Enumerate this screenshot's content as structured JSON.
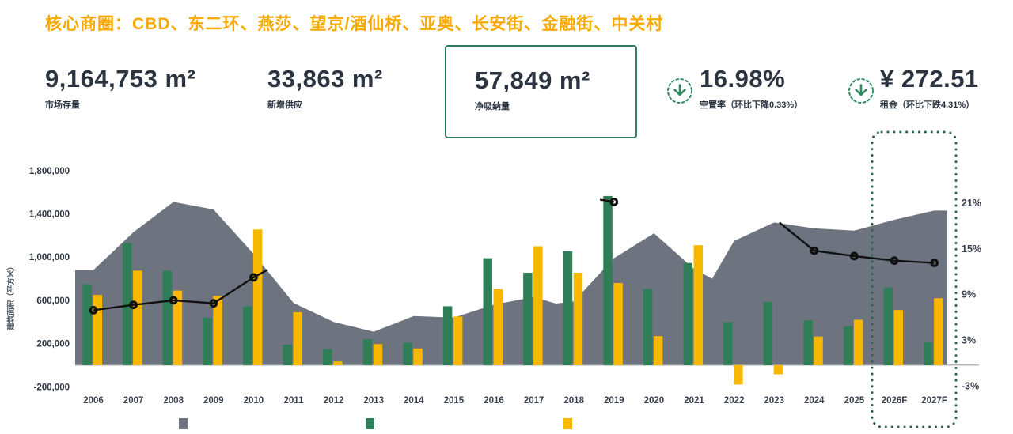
{
  "header": {
    "title": "核心商圈：CBD、东二环、燕莎、望京/酒仙桥、亚奥、长安街、金融街、中关村",
    "title_color": "#F9A800",
    "kpis": [
      {
        "value": "9,164,753 m²",
        "label": "市场存量"
      },
      {
        "value": "33,863 m²",
        "label": "新增供应"
      },
      {
        "value": "57,849 m²",
        "label": "净吸纳量",
        "boxed": true
      },
      {
        "value": "16.98%",
        "label": "空置率（环比下降0.33%）",
        "icon": "down-arrow-circle"
      },
      {
        "value": "¥ 272.51",
        "label": "租金（环比下跌4.31%）",
        "icon": "down-arrow-circle"
      }
    ]
  },
  "chart_data": {
    "type": "combo",
    "categories": [
      "2006",
      "2007",
      "2008",
      "2009",
      "2010",
      "2011",
      "2012",
      "2013",
      "2014",
      "2015",
      "2016",
      "2017",
      "2018",
      "2019",
      "2020",
      "2021",
      "2022",
      "2023",
      "2024",
      "2025",
      "2026F",
      "2027F"
    ],
    "y_axis_title": "建筑面积（平方米）",
    "left_axis": {
      "ticks": [
        "1,800,000",
        "1,400,000",
        "1,000,000",
        "600,000",
        "200,000",
        "-200,000"
      ],
      "values": [
        1800000,
        1400000,
        1000000,
        600000,
        200000,
        -200000
      ],
      "range": [
        -200000,
        1800000
      ]
    },
    "right_axis": {
      "ticks": [
        "21%",
        "15%",
        "9%",
        "3%",
        "-3%"
      ],
      "values": [
        21,
        15,
        9,
        3,
        -3
      ],
      "range": [
        -3,
        21
      ]
    },
    "series": {
      "area": {
        "color": "#6E7380",
        "points": [
          {
            "i": 0,
            "v": 880000
          },
          {
            "i": 1,
            "v": 1230000
          },
          {
            "i": 2,
            "v": 1510000
          },
          {
            "i": 3,
            "v": 1440000
          },
          {
            "i": 4,
            "v": 1030000
          },
          {
            "i": 5,
            "v": 575000
          },
          {
            "i": 6,
            "v": 400000
          },
          {
            "i": 7,
            "v": 310000
          },
          {
            "i": 8,
            "v": 455000
          },
          {
            "i": 9,
            "v": 440000
          },
          {
            "i": 10,
            "v": 560000
          },
          {
            "i": 11,
            "v": 630000
          },
          {
            "i": 11.55,
            "v": 570000
          },
          {
            "i": 12,
            "v": 590000
          },
          {
            "i": 13,
            "v": 990000
          },
          {
            "i": 14,
            "v": 1220000
          },
          {
            "i": 15,
            "v": 890000
          },
          {
            "i": 15.45,
            "v": 800000
          },
          {
            "i": 16,
            "v": 1150000
          },
          {
            "i": 17,
            "v": 1320000
          },
          {
            "i": 18,
            "v": 1265000
          },
          {
            "i": 19,
            "v": 1245000
          },
          {
            "i": 20,
            "v": 1345000
          },
          {
            "i": 21,
            "v": 1430000
          }
        ]
      },
      "bars_green": {
        "color": "#2F7E57",
        "values": [
          750000,
          1130000,
          875000,
          440000,
          545000,
          190000,
          150000,
          240000,
          210000,
          545000,
          990000,
          855000,
          1055000,
          1565000,
          705000,
          945000,
          400000,
          585000,
          415000,
          360000,
          720000,
          215000
        ]
      },
      "bars_yellow": {
        "color": "#F8B800",
        "values": [
          650000,
          875000,
          690000,
          640000,
          1255000,
          490000,
          35000,
          195000,
          155000,
          450000,
          705000,
          1100000,
          855000,
          760000,
          270000,
          1110000,
          -180000,
          -85000,
          265000,
          420000,
          510000,
          620000
        ]
      },
      "line": {
        "color": "#111111",
        "segments": [
          [
            {
              "i": 0,
              "p": 6.9,
              "m": true
            },
            {
              "i": 1,
              "p": 7.6,
              "m": true
            },
            {
              "i": 2,
              "p": 8.2,
              "m": true
            },
            {
              "i": 3,
              "p": 7.8,
              "m": true
            },
            {
              "i": 4,
              "p": 11.2,
              "m": true
            },
            {
              "i": 4.35,
              "p": 12.2,
              "m": false
            }
          ],
          [
            {
              "i": 12.65,
              "p": 21.4,
              "m": false
            },
            {
              "i": 13,
              "p": 21.1,
              "m": true
            }
          ],
          [
            {
              "i": 17.13,
              "p": 18.4,
              "m": false
            },
            {
              "i": 18,
              "p": 14.7,
              "m": true
            },
            {
              "i": 19,
              "p": 14.0,
              "m": true
            },
            {
              "i": 20,
              "p": 13.4,
              "m": true
            },
            {
              "i": 21,
              "p": 13.1,
              "m": true
            }
          ]
        ]
      }
    },
    "forecast_box": {
      "from": "2026F",
      "to": "2027F",
      "color": "#2F6054"
    },
    "legend": {
      "swatches": [
        "#6E7380",
        "#2F7E57",
        "#F8B800"
      ]
    },
    "accent_green": "#2E8B5F"
  }
}
